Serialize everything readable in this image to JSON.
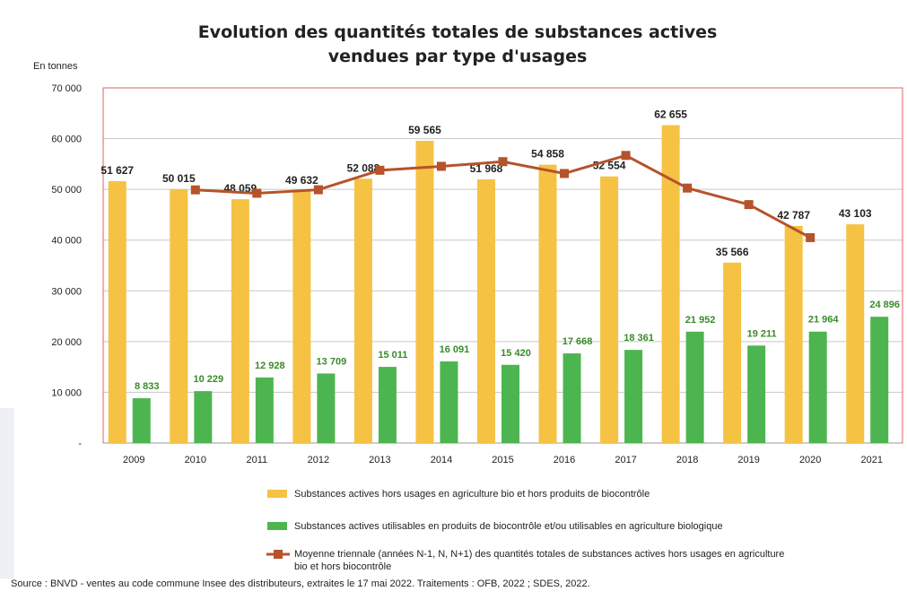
{
  "title_line1": "Evolution des quantités totales de substances actives",
  "title_line2": "vendues par type d'usages",
  "unit_label": "En tonnes",
  "source": "Source : BNVD - ventes au code commune Insee des distributeurs, extraites le 17 mai 2022. Traitements : OFB, 2022 ; SDES, 2022.",
  "legend": {
    "orange": "Substances actives hors usages en agriculture bio et hors produits de biocontrôle",
    "green": "Substances actives utilisables en  produits de biocontrôle et/ou utilisables en agriculture biologique",
    "line_1": "Moyenne triennale (années N-1, N, N+1) des quantités totales de substances actives hors usages en agriculture",
    "line_2": "bio et hors biocontrôle"
  },
  "colors": {
    "orange": "#F5C244",
    "green": "#4DB54F",
    "line": "#B5532B",
    "grid": "#c8c8c8",
    "plot_border": "#e06060"
  },
  "chart_data": {
    "type": "bar",
    "categories": [
      "2009",
      "2010",
      "2011",
      "2012",
      "2013",
      "2014",
      "2015",
      "2016",
      "2017",
      "2018",
      "2019",
      "2020",
      "2021"
    ],
    "ylim": [
      0,
      70000
    ],
    "yticks": [
      0,
      10000,
      20000,
      30000,
      40000,
      50000,
      60000,
      70000
    ],
    "ytick_labels": [
      "-",
      "10 000",
      "20 000",
      "30 000",
      "40 000",
      "50 000",
      "60 000",
      "70 000"
    ],
    "ylabel": "En tonnes",
    "grid": true,
    "legend_position": "bottom",
    "series": [
      {
        "name": "Substances actives hors usages en agriculture bio et hors produits de biocontrôle",
        "kind": "bar",
        "color": "#F5C244",
        "values": [
          51627,
          50015,
          48059,
          49632,
          52088,
          59565,
          51968,
          54858,
          52554,
          62655,
          35566,
          42787,
          43103
        ],
        "labels": [
          "51 627",
          "50 015",
          "48 059",
          "49 632",
          "52 088",
          "59 565",
          "51 968",
          "54 858",
          "52 554",
          "62 655",
          "35 566",
          "42 787",
          "43 103"
        ]
      },
      {
        "name": "Substances actives utilisables en  produits de biocontrôle et/ou utilisables en agriculture biologique",
        "kind": "bar",
        "color": "#4DB54F",
        "values": [
          8833,
          10229,
          12928,
          13709,
          15011,
          16091,
          15420,
          17668,
          18361,
          21952,
          19211,
          21964,
          24896
        ],
        "labels": [
          "8 833",
          "10 229",
          "12 928",
          "13 709",
          "15 011",
          "16 091",
          "15 420",
          "17 668",
          "18 361",
          "21 952",
          "19 211",
          "21 964",
          "24 896"
        ]
      },
      {
        "name": "Moyenne triennale (années N-1, N, N+1) des quantités totales de substances actives hors usages en agriculture bio et hors biocontrôle",
        "kind": "line",
        "color": "#B5532B",
        "values": [
          null,
          49900,
          49235,
          49926,
          53762,
          54540,
          55464,
          53127,
          56689,
          50258,
          47003,
          40485,
          null
        ]
      }
    ]
  }
}
